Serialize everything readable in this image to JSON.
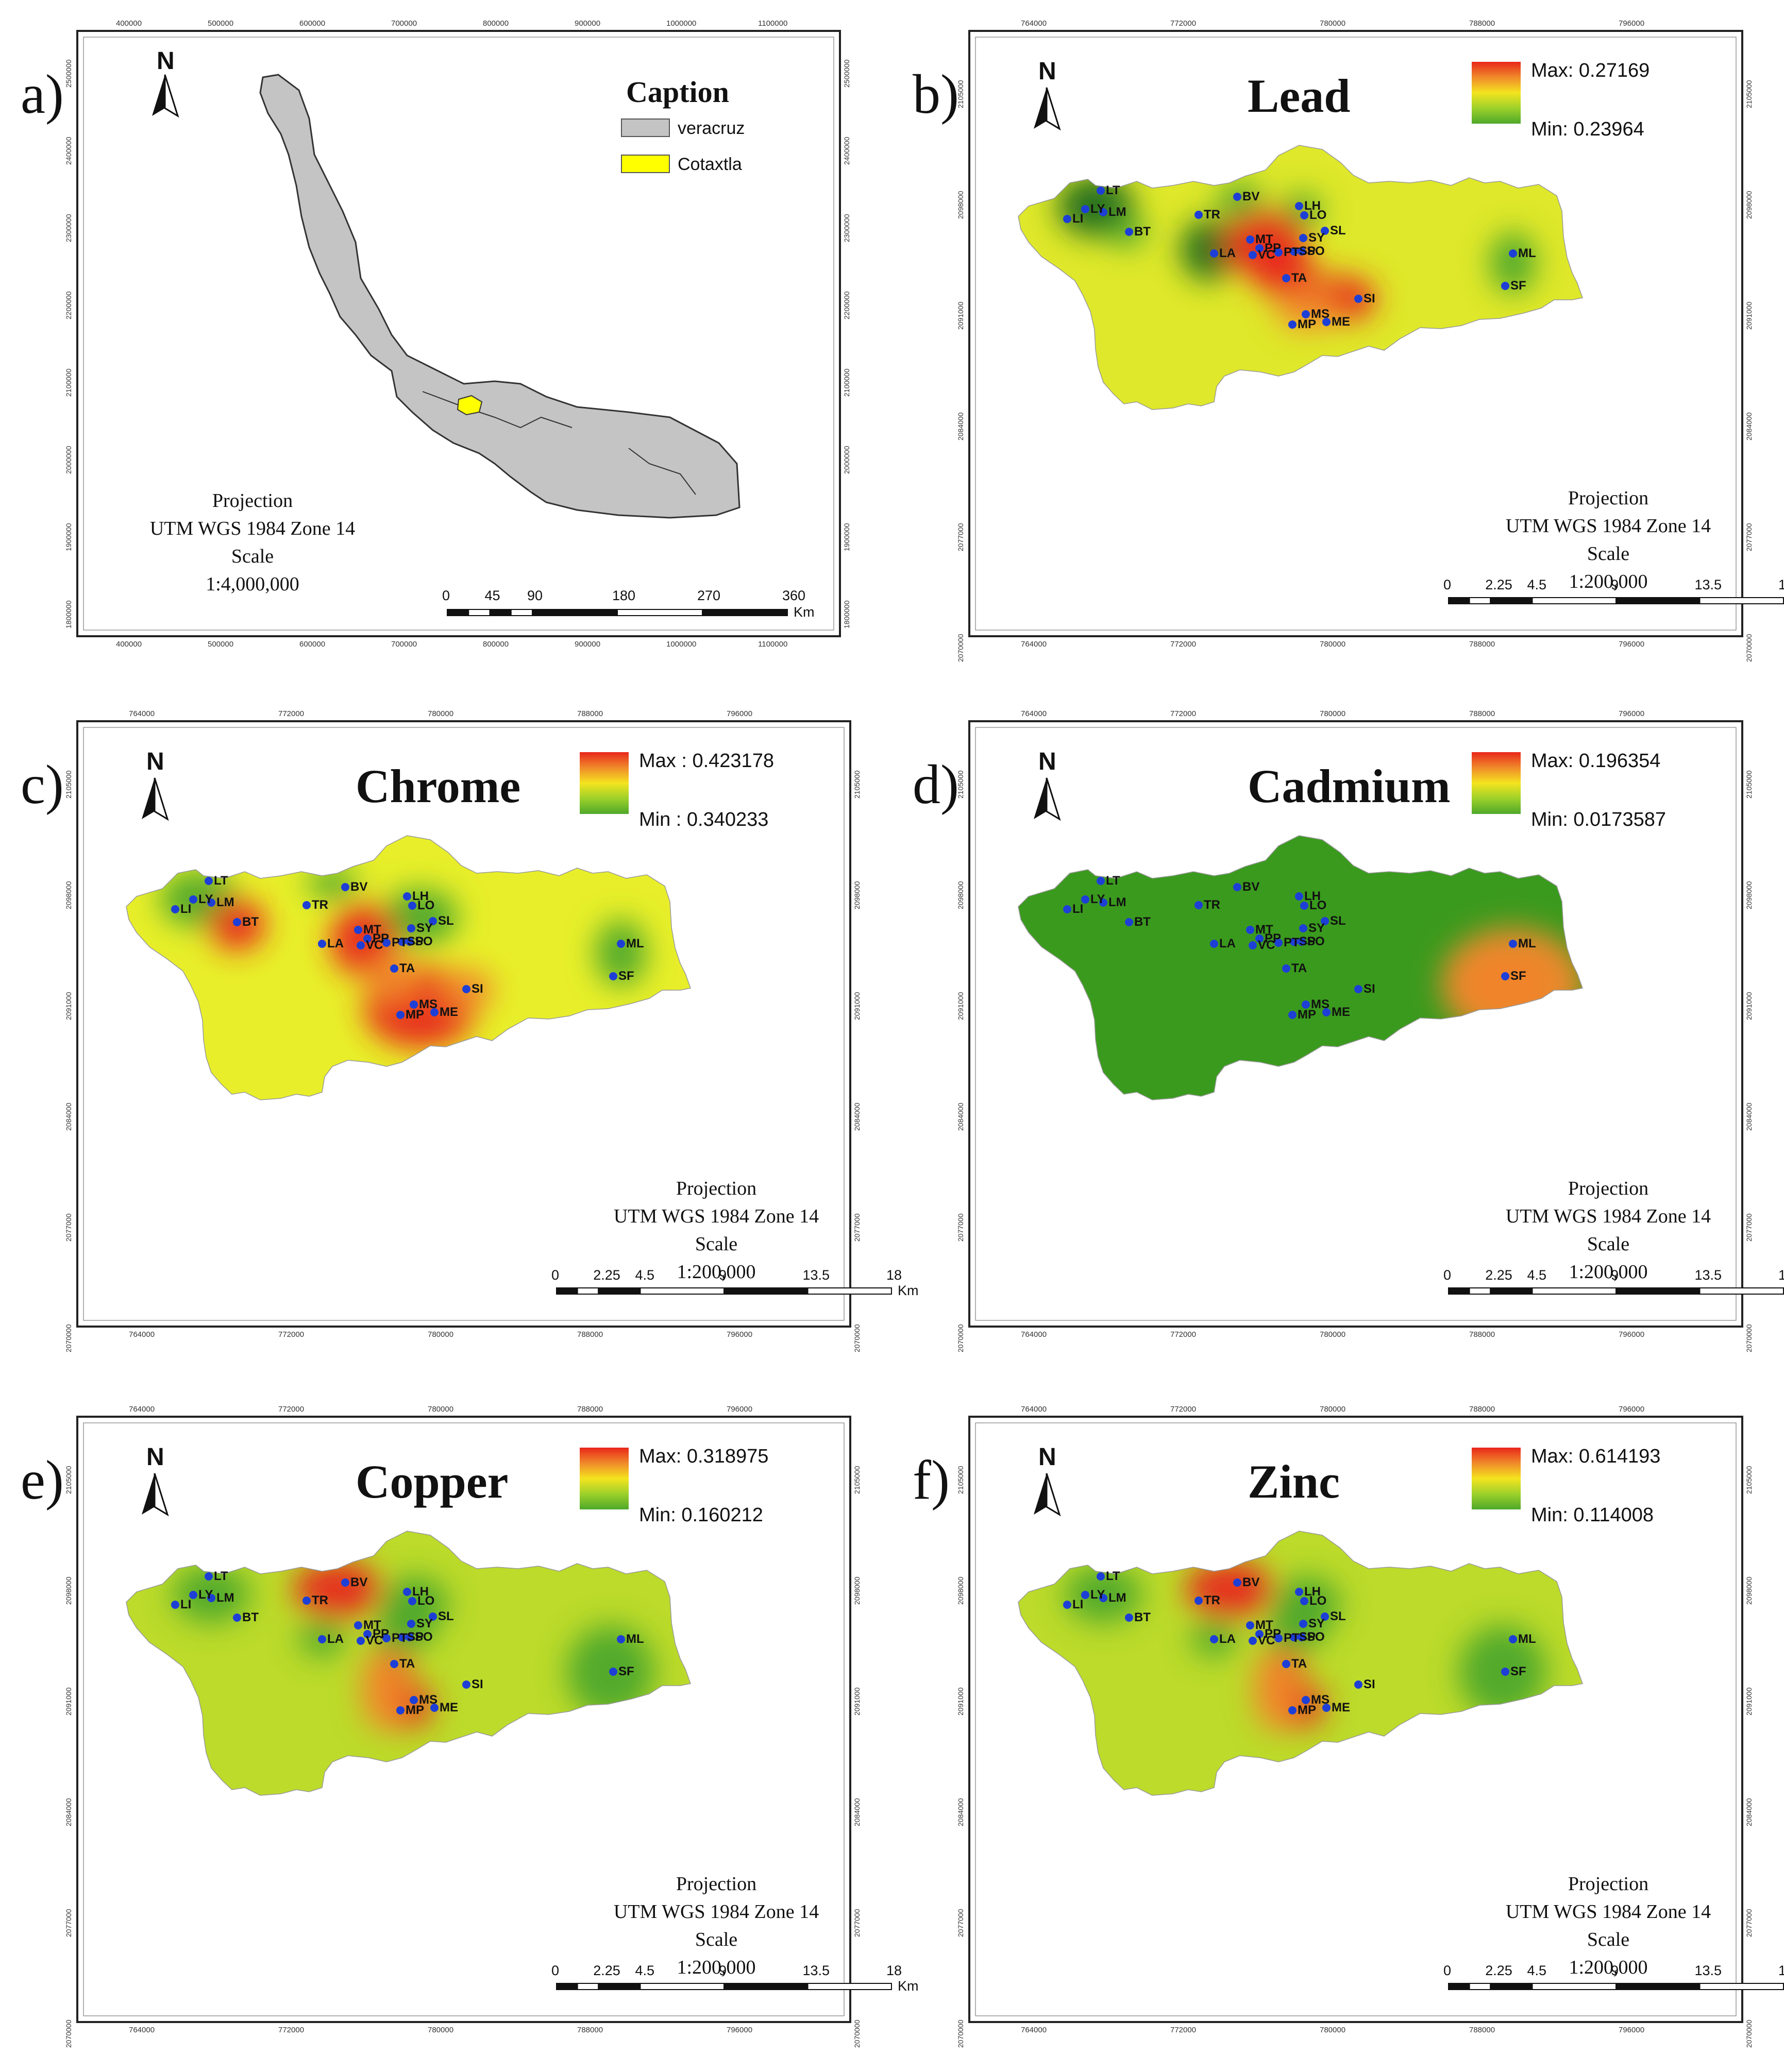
{
  "map_a": {
    "label": "a)",
    "caption_title": "Caption",
    "legend": [
      {
        "name": "veracruz",
        "color": "#c4c4c4"
      },
      {
        "name": "Cotaxtla",
        "color": "#ffff00"
      }
    ],
    "projection": [
      "Projection",
      "UTM WGS 1984 Zone 14",
      "Scale",
      "1:4,000,000"
    ],
    "scale_ticks": [
      "0",
      "45",
      "90",
      "180",
      "270",
      "360"
    ],
    "scale_unit": "Km",
    "top_ticks": [
      "400000",
      "500000",
      "600000",
      "700000",
      "800000",
      "900000",
      "1000000",
      "1100000"
    ],
    "left_ticks": [
      "2500000",
      "2400000",
      "2300000",
      "2200000",
      "2100000",
      "2000000",
      "1900000",
      "1800000"
    ],
    "north": "N"
  },
  "panels": [
    {
      "label": "b)",
      "title": "Lead",
      "max": "Max: 0.27169",
      "min": "Min: 0.23964",
      "ramp": [
        "#e8261a",
        "#f08a2a",
        "#f4e41f",
        "#9dd12a",
        "#4ea82a"
      ],
      "base_color": "#dfe82a"
    },
    {
      "label": "c)",
      "title": "Chrome",
      "max": "Max : 0.423178",
      "min": "Min : 0.340233",
      "ramp": [
        "#e8261a",
        "#f08a2a",
        "#f4e41f",
        "#9dd12a",
        "#4ea82a"
      ],
      "base_color": "#e8ef2a"
    },
    {
      "label": "d)",
      "title": "Cadmium",
      "max": "Max: 0.196354",
      "min": "Min: 0.0173587",
      "ramp": [
        "#e8261a",
        "#f08a2a",
        "#f4e41f",
        "#9dd12a",
        "#4ea82a"
      ],
      "base_color": "#3a9a1e"
    },
    {
      "label": "e)",
      "title": "Copper",
      "max": "Max: 0.318975",
      "min": "Min: 0.160212",
      "ramp": [
        "#e8261a",
        "#f08a2a",
        "#f4e41f",
        "#9dd12a",
        "#4ea82a"
      ],
      "base_color": "#bcdb2a"
    },
    {
      "label": "f)",
      "title": "Zinc",
      "max": "Max: 0.614193",
      "min": "Min: 0.114008",
      "ramp": [
        "#e8261a",
        "#f08a2a",
        "#f4e41f",
        "#9dd12a",
        "#4ea82a"
      ],
      "base_color": "#bcdb2a"
    }
  ],
  "shared": {
    "projection": [
      "Projection",
      "UTM WGS 1984 Zone 14",
      "Scale",
      "1:200,000"
    ],
    "scale_ticks": [
      "0",
      "2.25",
      "4.5",
      "9",
      "13.5",
      "18"
    ],
    "scale_unit": "Km",
    "top_ticks": [
      "764000",
      "772000",
      "780000",
      "788000",
      "796000"
    ],
    "left_ticks": [
      "2105000",
      "2098000",
      "2091000",
      "2084000",
      "2077000",
      "2070000"
    ],
    "north": "N",
    "sites": [
      "LT",
      "LY",
      "LI",
      "LM",
      "BT",
      "TR",
      "BV",
      "LH",
      "LO",
      "SL",
      "SY",
      "MT",
      "PP",
      "VC",
      "LA",
      "PT",
      "SP",
      "SO",
      "TA",
      "SI",
      "MS",
      "MP",
      "ME",
      "ML",
      "SF"
    ],
    "point_color": "#1e3fd6"
  }
}
